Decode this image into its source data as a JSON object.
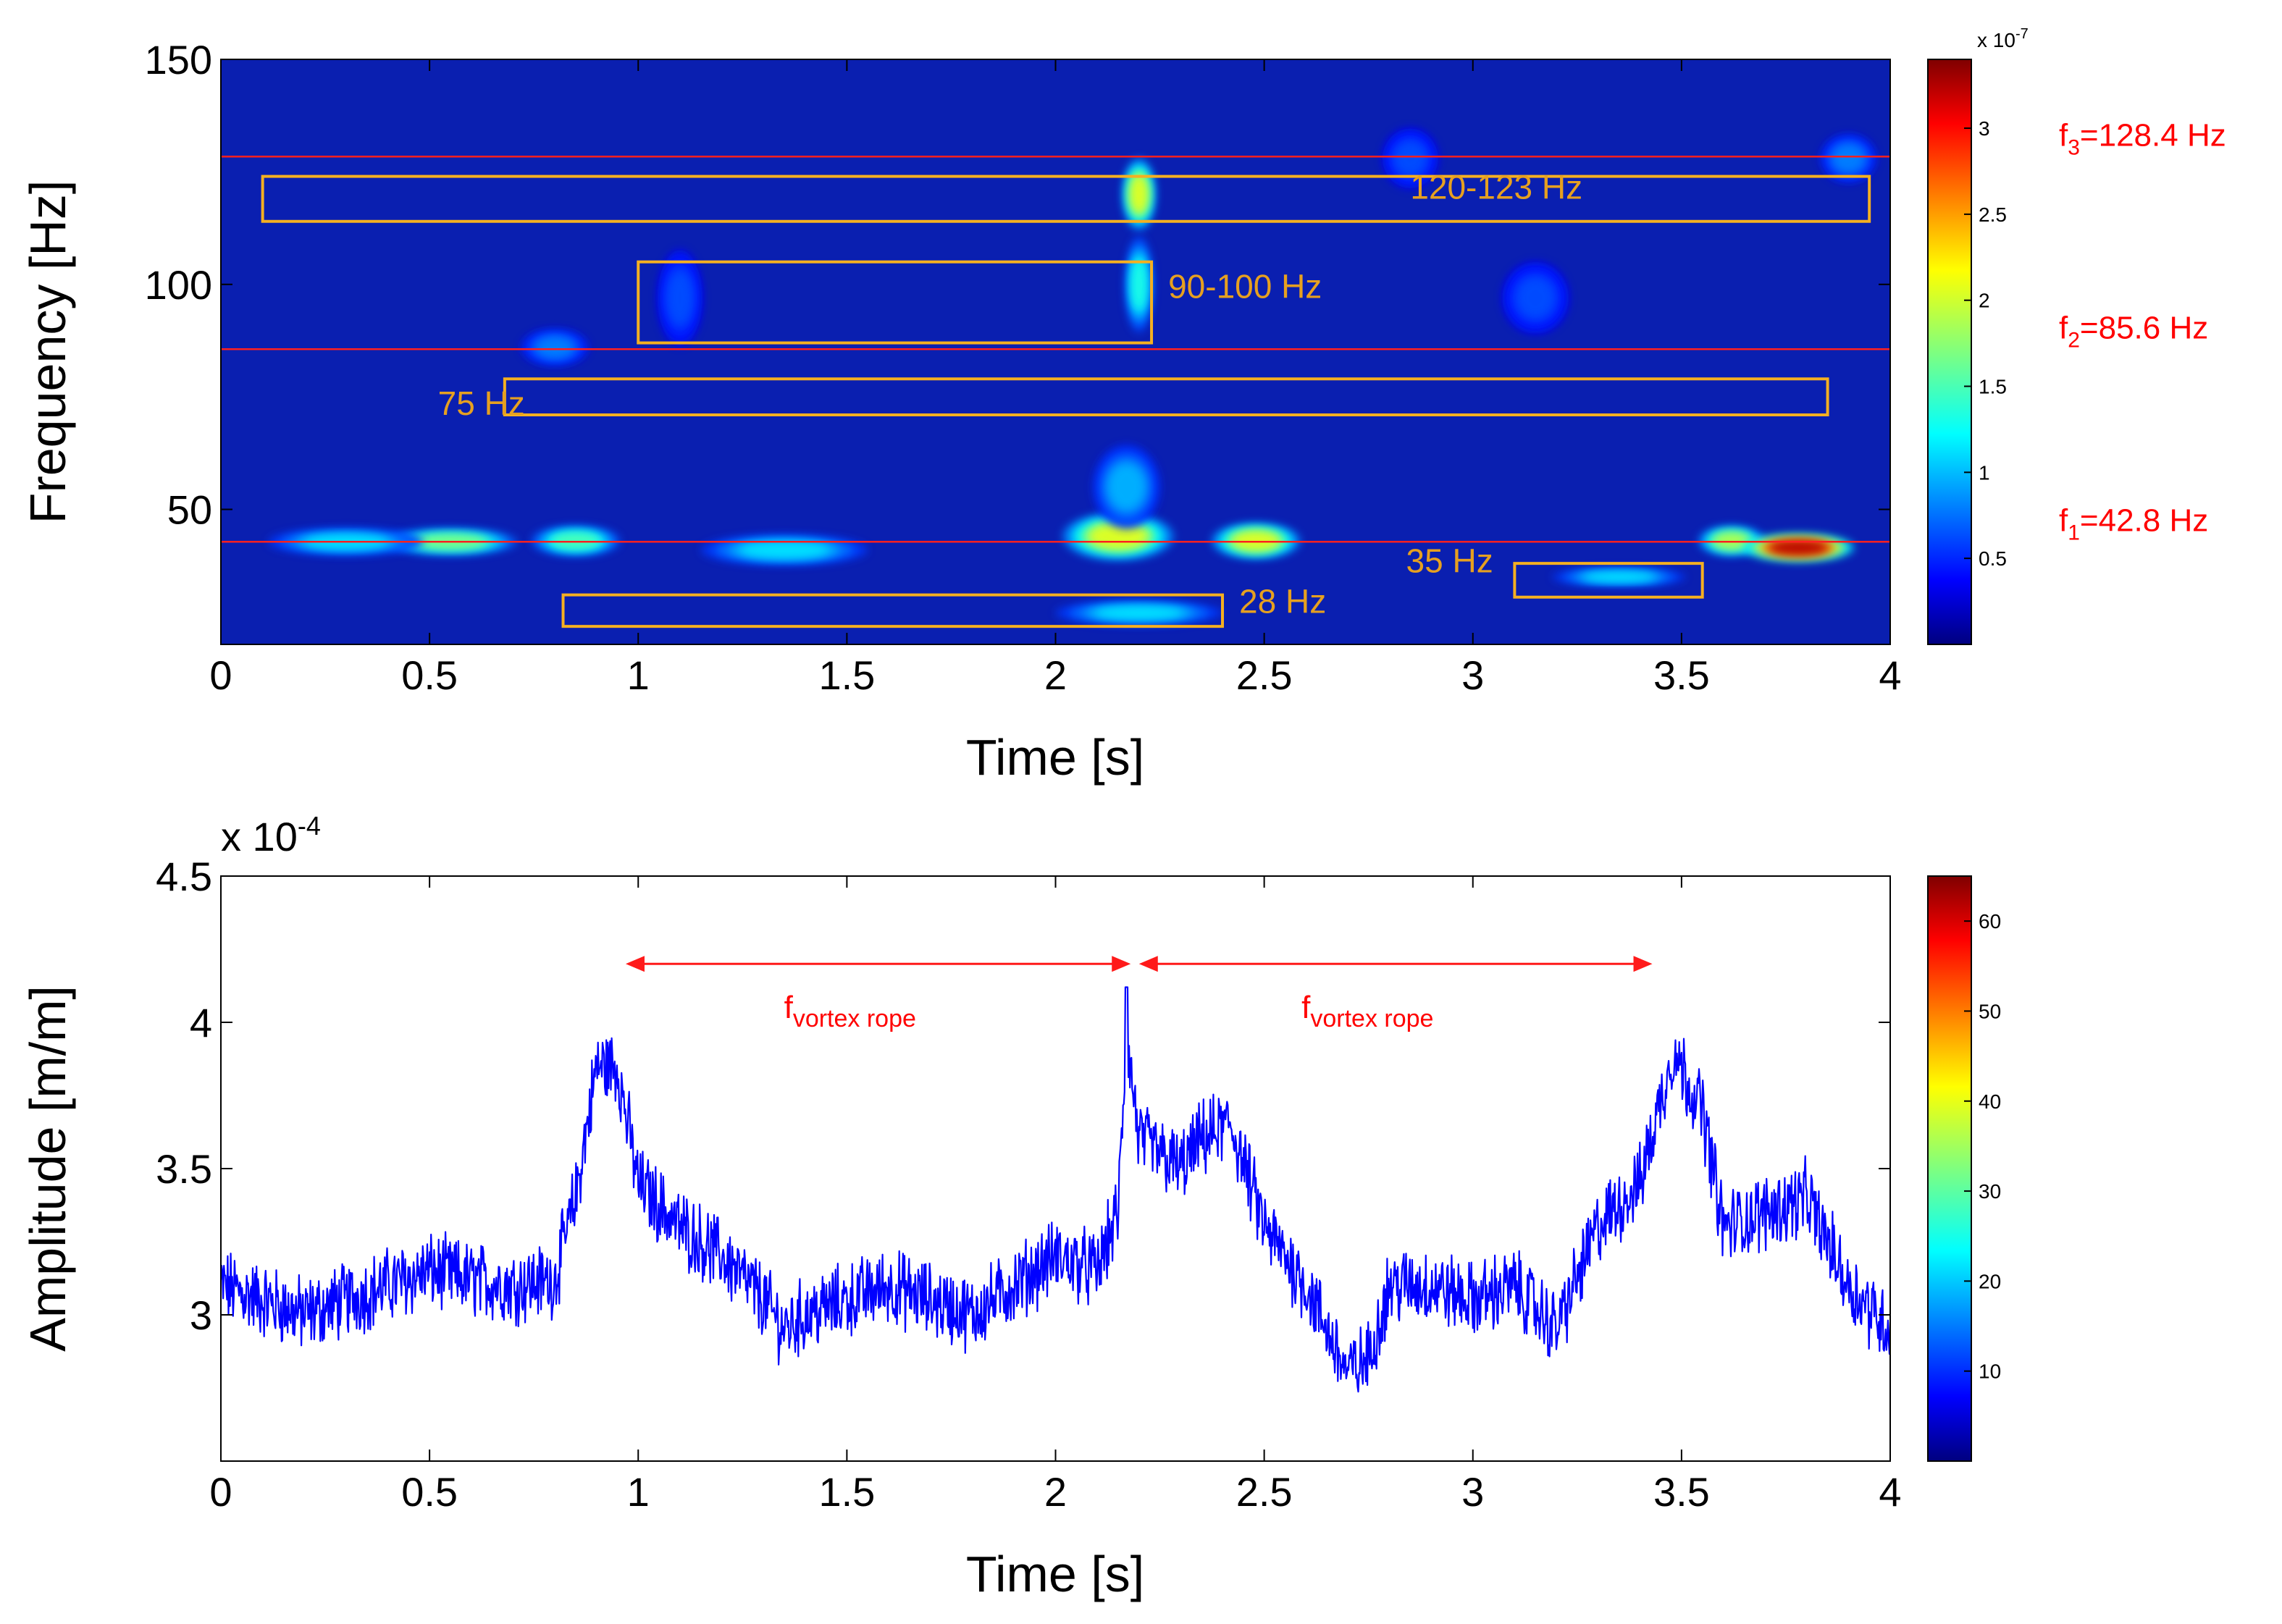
{
  "chart_data": [
    {
      "type": "heatmap",
      "title": "",
      "xlabel": "Time [s]",
      "ylabel": "Frequency [Hz]",
      "xlim": [
        0,
        4
      ],
      "ylim": [
        20,
        150
      ],
      "xticks": [
        0,
        0.5,
        1,
        1.5,
        2,
        2.5,
        3,
        3.5,
        4
      ],
      "xtick_labels": [
        "0",
        "0.5",
        "1",
        "1.5",
        "2",
        "2.5",
        "3",
        "3.5",
        "4"
      ],
      "yticks": [
        50,
        100,
        150
      ],
      "ytick_labels": [
        "50",
        "100",
        "150"
      ],
      "grid": false,
      "colormap": "jet",
      "colorbar": {
        "exponent_label": "x 10",
        "exponent_power": "-7",
        "range": [
          0,
          3.4
        ],
        "ticks": [
          0.5,
          1,
          1.5,
          2,
          2.5,
          3
        ],
        "tick_labels": [
          "0.5",
          "1",
          "1.5",
          "2",
          "2.5",
          "3"
        ]
      },
      "hot_spots": [
        {
          "t": 0.55,
          "f": 42.8,
          "w": 0.12,
          "h": 2.2,
          "v": 0.5
        },
        {
          "t": 0.3,
          "f": 42.8,
          "w": 0.14,
          "h": 2.2,
          "v": 0.35
        },
        {
          "t": 0.85,
          "f": 43.0,
          "w": 0.08,
          "h": 2.5,
          "v": 0.45
        },
        {
          "t": 1.35,
          "f": 41.0,
          "w": 0.15,
          "h": 2.5,
          "v": 0.35
        },
        {
          "t": 2.15,
          "f": 44.0,
          "w": 0.1,
          "h": 4.0,
          "v": 0.6
        },
        {
          "t": 2.17,
          "f": 55.0,
          "w": 0.06,
          "h": 7.0,
          "v": 0.3
        },
        {
          "t": 2.48,
          "f": 43.0,
          "w": 0.08,
          "h": 3.0,
          "v": 0.6
        },
        {
          "t": 3.62,
          "f": 43.0,
          "w": 0.06,
          "h": 2.5,
          "v": 0.55
        },
        {
          "t": 3.78,
          "f": 41.5,
          "w": 0.1,
          "h": 2.3,
          "v": 0.95
        },
        {
          "t": 2.2,
          "f": 120.0,
          "w": 0.03,
          "h": 6.0,
          "v": 0.6
        },
        {
          "t": 2.2,
          "f": 100.0,
          "w": 0.025,
          "h": 8.0,
          "v": 0.4
        },
        {
          "t": 2.2,
          "f": 27.0,
          "w": 0.15,
          "h": 2.0,
          "v": 0.35
        },
        {
          "t": 3.35,
          "f": 35.0,
          "w": 0.12,
          "h": 1.5,
          "v": 0.35
        },
        {
          "t": 0.8,
          "f": 86.0,
          "w": 0.06,
          "h": 3.0,
          "v": 0.25
        },
        {
          "t": 1.1,
          "f": 97.0,
          "w": 0.04,
          "h": 8.0,
          "v": 0.2
        },
        {
          "t": 3.15,
          "f": 97.0,
          "w": 0.06,
          "h": 6.0,
          "v": 0.2
        },
        {
          "t": 3.9,
          "f": 128.0,
          "w": 0.05,
          "h": 4.0,
          "v": 0.25
        },
        {
          "t": 2.85,
          "f": 128.0,
          "w": 0.05,
          "h": 5.0,
          "v": 0.2
        }
      ],
      "frequency_lines": [
        {
          "label": "f",
          "subscript": "1",
          "suffix": "=42.8 Hz",
          "value": 42.8
        },
        {
          "label": "f",
          "subscript": "2",
          "suffix": "=85.6 Hz",
          "value": 85.6
        },
        {
          "label": "f",
          "subscript": "3",
          "suffix": "=128.4 Hz",
          "value": 128.4
        }
      ],
      "annotation_boxes": [
        {
          "label": "120-123 Hz",
          "t": [
            0.1,
            3.95
          ],
          "f": [
            114,
            124
          ],
          "label_at": [
            2.85,
            119
          ]
        },
        {
          "label": "90-100 Hz",
          "t": [
            1.0,
            2.23
          ],
          "f": [
            87,
            105
          ],
          "label_at": [
            2.27,
            97
          ]
        },
        {
          "label": "75 Hz",
          "t": [
            0.68,
            3.85
          ],
          "f": [
            71,
            79
          ],
          "label_at": [
            0.52,
            71
          ]
        },
        {
          "label": "28 Hz",
          "t": [
            0.82,
            2.4
          ],
          "f": [
            24,
            31
          ],
          "label_at": [
            2.44,
            27
          ]
        },
        {
          "label": "35 Hz",
          "t": [
            3.1,
            3.55
          ],
          "f": [
            30.5,
            38
          ],
          "label_at": [
            2.84,
            36
          ]
        }
      ]
    },
    {
      "type": "line",
      "title": "",
      "xlabel": "Time [s]",
      "ylabel": "Amplitude [m/m]",
      "xlim": [
        0,
        4
      ],
      "ylim": [
        2.5,
        4.5
      ],
      "y_exponent_label": "x 10",
      "y_exponent_power": "-4",
      "xticks": [
        0,
        0.5,
        1,
        1.5,
        2,
        2.5,
        3,
        3.5,
        4
      ],
      "xtick_labels": [
        "0",
        "0.5",
        "1",
        "1.5",
        "2",
        "2.5",
        "3",
        "3.5",
        "4"
      ],
      "yticks": [
        3,
        3.5,
        4,
        4.5
      ],
      "ytick_labels": [
        "3",
        "3.5",
        "4",
        "4.5"
      ],
      "grid": false,
      "series": [
        {
          "color": "#0000ff",
          "x": [
            0,
            0.1,
            0.2,
            0.3,
            0.4,
            0.5,
            0.6,
            0.7,
            0.8,
            0.85,
            0.9,
            0.95,
            1.0,
            1.1,
            1.2,
            1.3,
            1.35,
            1.4,
            1.5,
            1.6,
            1.7,
            1.8,
            1.9,
            2.0,
            2.1,
            2.15,
            2.17,
            2.2,
            2.3,
            2.35,
            2.42,
            2.5,
            2.6,
            2.7,
            2.75,
            2.8,
            2.9,
            3.0,
            3.1,
            3.2,
            3.3,
            3.4,
            3.48,
            3.55,
            3.6,
            3.7,
            3.8,
            3.9,
            4.0
          ],
          "y": [
            3.1,
            3.05,
            3.0,
            3.05,
            3.1,
            3.15,
            3.12,
            3.1,
            3.12,
            3.4,
            3.85,
            3.85,
            3.45,
            3.3,
            3.2,
            3.05,
            2.95,
            3.0,
            3.05,
            3.1,
            3.05,
            3.0,
            3.1,
            3.2,
            3.15,
            3.35,
            3.95,
            3.6,
            3.5,
            3.6,
            3.65,
            3.3,
            3.1,
            2.8,
            2.85,
            3.1,
            3.1,
            3.05,
            3.1,
            2.95,
            3.3,
            3.45,
            3.9,
            3.7,
            3.3,
            3.35,
            3.4,
            3.1,
            2.95
          ]
        }
      ],
      "colorbar": {
        "ticks": [
          10,
          20,
          30,
          40,
          50,
          60
        ],
        "tick_labels": [
          "10",
          "20",
          "30",
          "40",
          "50",
          "60"
        ],
        "range": [
          0,
          65
        ]
      },
      "arrows": [
        {
          "label": "f",
          "subscript": "vortex rope",
          "x_start": 0.97,
          "x_end": 2.18,
          "y": 4.2
        },
        {
          "label": "f",
          "subscript": "vortex rope",
          "x_start": 2.2,
          "x_end": 3.43,
          "y": 4.2
        }
      ]
    }
  ]
}
